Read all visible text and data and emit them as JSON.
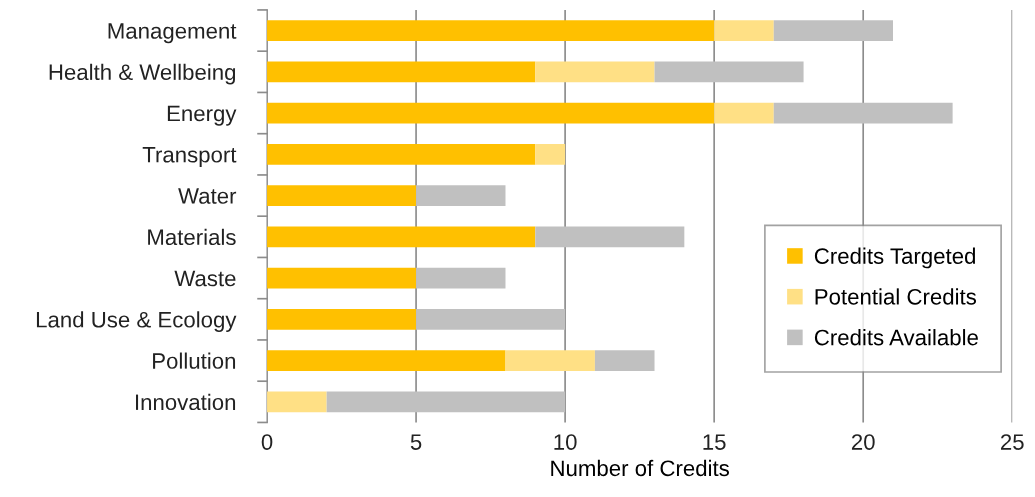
{
  "chart_data": {
    "type": "bar",
    "orientation": "horizontal",
    "stacked": true,
    "xlabel": "Number of Credits",
    "categories": [
      "Management",
      "Health & Wellbeing",
      "Energy",
      "Transport",
      "Water",
      "Materials",
      "Waste",
      "Land Use & Ecology",
      "Pollution",
      "Innovation"
    ],
    "series": [
      {
        "name": "Credits Targeted",
        "color": "#ffc000",
        "values": [
          15,
          9,
          15,
          9,
          5,
          9,
          5,
          5,
          8,
          0
        ]
      },
      {
        "name": "Potential Credits",
        "color": "#ffe085",
        "values": [
          2,
          4,
          2,
          1,
          0,
          0,
          0,
          0,
          3,
          2
        ]
      },
      {
        "name": "Credits Available",
        "color": "#c0c0c0",
        "values": [
          4,
          5,
          6,
          0,
          3,
          5,
          3,
          5,
          2,
          8
        ]
      }
    ],
    "xlim": [
      0,
      25
    ],
    "xticks": [
      0,
      5,
      10,
      15,
      20,
      25
    ],
    "grid": "x",
    "legend": "right"
  }
}
